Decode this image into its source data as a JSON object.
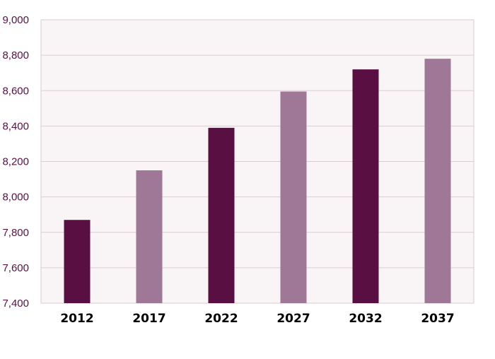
{
  "chart_data": {
    "type": "bar",
    "title": "",
    "xlabel": "",
    "ylabel": "",
    "categories": [
      "2012",
      "2017",
      "2022",
      "2027",
      "2032",
      "2037"
    ],
    "values": [
      7870,
      8150,
      8390,
      8595,
      8720,
      8780
    ],
    "ylim": [
      7400,
      9000
    ],
    "yticks": [
      7400,
      7600,
      7800,
      8000,
      8200,
      8400,
      8600,
      8800,
      9000
    ],
    "ytick_labels": [
      "7,400",
      "7,600",
      "7,800",
      "8,000",
      "8,200",
      "8,400",
      "8,600",
      "8,800",
      "9,000"
    ],
    "grid": "horizontal",
    "legend": "none",
    "colors": {
      "bar_dark": "#5a0f42",
      "bar_light": "#9e7896",
      "plot_background": "#f9f4f6",
      "gridline": "#d9cdd3",
      "axis_text": "#5a0f42",
      "category_text": "#000000"
    },
    "bar_color_pattern": [
      "bar_dark",
      "bar_light",
      "bar_dark",
      "bar_light",
      "bar_dark",
      "bar_light"
    ]
  }
}
